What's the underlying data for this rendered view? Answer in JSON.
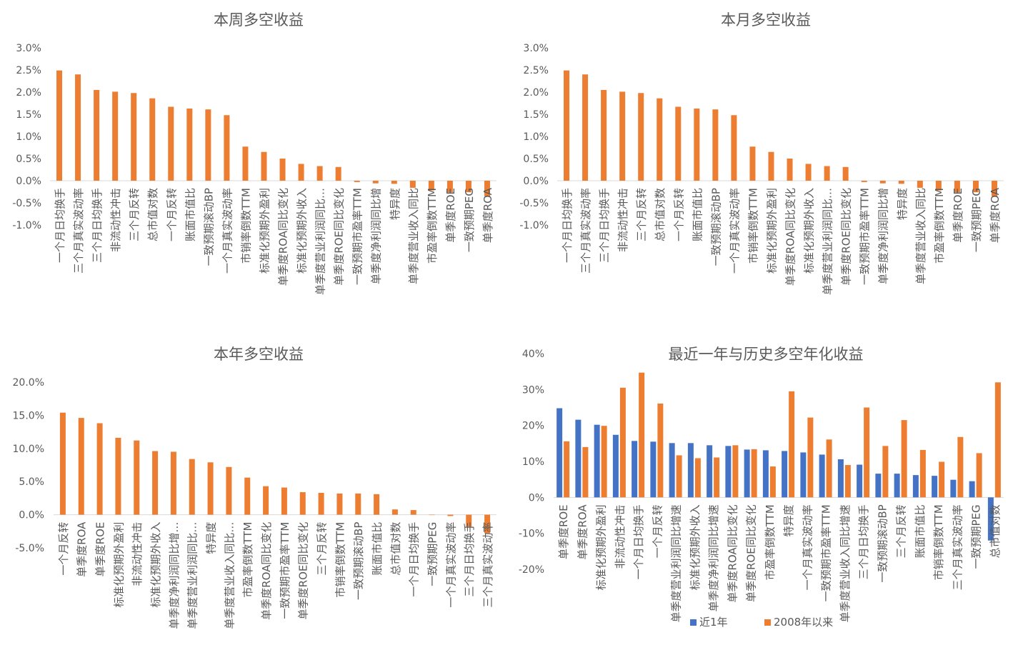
{
  "colors": {
    "orange": "#ED7D31",
    "blue": "#4472C4",
    "axis": "#D9D9D9",
    "text": "#595959"
  },
  "chart_data": [
    {
      "type": "bar",
      "title": "本周多空收益",
      "ylim": [
        -0.01,
        0.03
      ],
      "yticks": [
        -0.01,
        -0.005,
        0,
        0.005,
        0.01,
        0.015,
        0.02,
        0.025,
        0.03
      ],
      "ytick_labels": [
        "-1.0%",
        "-0.5%",
        "0.0%",
        "0.5%",
        "1.0%",
        "1.5%",
        "2.0%",
        "2.5%",
        "3.0%"
      ],
      "grid": false,
      "categories": [
        "一个月日均换手",
        "三个月真实波动率",
        "三个月日均换手",
        "非流动性冲击",
        "三个月反转",
        "总市值对数",
        "一个月反转",
        "账面市值比",
        "一致预期滚动BP",
        "一个月真实波动率",
        "市销率倒数TTM",
        "标准化预期外盈利",
        "单季度ROA同比变化",
        "标准化预期外收入",
        "单季度营业利润同比…",
        "单季度ROE同比变化",
        "一致预期市盈率TTM",
        "单季度净利润同比增",
        "特异度",
        "单季度营业收入同比",
        "市盈率倒数TTM",
        "单季度ROE",
        "一致预期PEG",
        "单季度ROA"
      ],
      "values": [
        0.0249,
        0.024,
        0.0205,
        0.0201,
        0.0198,
        0.0186,
        0.0167,
        0.0163,
        0.0161,
        0.0148,
        0.0077,
        0.0065,
        0.005,
        0.0038,
        0.0033,
        0.0031,
        -0.0003,
        -0.0006,
        -0.0007,
        -0.0016,
        -0.0022,
        -0.0026,
        -0.0026,
        -0.0035
      ]
    },
    {
      "type": "bar",
      "title": "本月多空收益",
      "ylim": [
        -0.01,
        0.03
      ],
      "yticks": [
        -0.01,
        -0.005,
        0,
        0.005,
        0.01,
        0.015,
        0.02,
        0.025,
        0.03
      ],
      "ytick_labels": [
        "-1.0%",
        "-0.5%",
        "0.0%",
        "0.5%",
        "1.0%",
        "1.5%",
        "2.0%",
        "2.5%",
        "3.0%"
      ],
      "grid": false,
      "categories": [
        "一个月日均换手",
        "三个月真实波动率",
        "三个月日均换手",
        "非流动性冲击",
        "三个月反转",
        "总市值对数",
        "一个月反转",
        "账面市值比",
        "一致预期滚动BP",
        "一个月真实波动率",
        "市销率倒数TTM",
        "标准化预期外盈利",
        "单季度ROA同比变化",
        "标准化预期外收入",
        "单季度营业利润同比…",
        "单季度ROE同比变化",
        "一致预期市盈率TTM",
        "单季度净利润同比增",
        "特异度",
        "单季度营业收入同比",
        "市盈率倒数TTM",
        "单季度ROE",
        "一致预期PEG",
        "单季度ROA"
      ],
      "values": [
        0.0249,
        0.024,
        0.0205,
        0.0201,
        0.0198,
        0.0186,
        0.0167,
        0.0163,
        0.0161,
        0.0148,
        0.0077,
        0.0065,
        0.005,
        0.0038,
        0.0033,
        0.0031,
        -0.0003,
        -0.0006,
        -0.0007,
        -0.0016,
        -0.0022,
        -0.0026,
        -0.0026,
        -0.0035
      ]
    },
    {
      "type": "bar",
      "title": "本年多空收益",
      "ylim": [
        -0.05,
        0.2
      ],
      "yticks": [
        -0.05,
        0,
        0.05,
        0.1,
        0.15,
        0.2
      ],
      "ytick_labels": [
        "-5.0%",
        "0.0%",
        "5.0%",
        "10.0%",
        "15.0%",
        "20.0%"
      ],
      "grid": false,
      "categories": [
        "一个月反转",
        "单季度ROA",
        "单季度ROE",
        "标准化预期外盈利",
        "非流动性冲击",
        "标准化预期外收入",
        "单季度净利润同比增…",
        "单季度营业利润同比…",
        "特异度",
        "单季度营业收入同比…",
        "市盈率倒数TTM",
        "单季度ROA同比变化",
        "一致预期市盈率TTM",
        "单季度ROE同比变化",
        "三个月反转",
        "市销率倒数TTM",
        "一致预期滚动BP",
        "账面市值比",
        "总市值对数",
        "一个月日均换手",
        "一致预期PEG",
        "一个月真实波动率",
        "三个月日均换手",
        "三个月真实波动率"
      ],
      "values": [
        0.154,
        0.146,
        0.138,
        0.116,
        0.112,
        0.096,
        0.095,
        0.084,
        0.079,
        0.072,
        0.056,
        0.043,
        0.041,
        0.034,
        0.033,
        0.032,
        0.032,
        0.031,
        0.008,
        0.007,
        0.0,
        -0.002,
        -0.018,
        -0.028
      ]
    },
    {
      "type": "bar",
      "title": "最近一年与历史多空年化收益",
      "ylim": [
        -0.2,
        0.4
      ],
      "yticks": [
        -0.2,
        -0.1,
        0,
        0.1,
        0.2,
        0.3,
        0.4
      ],
      "ytick_labels": [
        "-20%",
        "-10%",
        "0%",
        "10%",
        "20%",
        "30%",
        "40%"
      ],
      "grid": false,
      "legend": "bottom",
      "categories": [
        "单季度ROE",
        "单季度ROA",
        "标准化预期外盈利",
        "非流动性冲击",
        "一个月日均换手",
        "一个月反转",
        "单季度营业利润同比增速",
        "标准化预期外收入",
        "单季度净利润同比增速",
        "单季度ROA同比变化",
        "单季度ROE同比变化",
        "市盈率倒数TTM",
        "特异度",
        "一个月真实波动率",
        "一致预期市盈率TTM",
        "单季度营业收入同比增速",
        "三个月日均换手",
        "一致预期滚动BP",
        "三个月反转",
        "账面市值比",
        "市销率倒数TTM",
        "三个月真实波动率",
        "一致预期PEG",
        "总市值对数"
      ],
      "series": [
        {
          "name": "近1年",
          "color": "#4472C4",
          "values": [
            0.248,
            0.216,
            0.202,
            0.174,
            0.157,
            0.155,
            0.151,
            0.151,
            0.145,
            0.143,
            0.133,
            0.131,
            0.129,
            0.125,
            0.119,
            0.106,
            0.091,
            0.066,
            0.066,
            0.062,
            0.06,
            0.049,
            0.045,
            -0.12
          ]
        },
        {
          "name": "2008年以来",
          "color": "#ED7D31",
          "values": [
            0.156,
            0.14,
            0.199,
            0.305,
            0.347,
            0.261,
            0.117,
            0.109,
            0.111,
            0.145,
            0.134,
            0.086,
            0.295,
            0.222,
            0.161,
            0.09,
            0.25,
            0.143,
            0.215,
            0.132,
            0.099,
            0.168,
            0.123,
            0.32
          ]
        }
      ]
    }
  ]
}
